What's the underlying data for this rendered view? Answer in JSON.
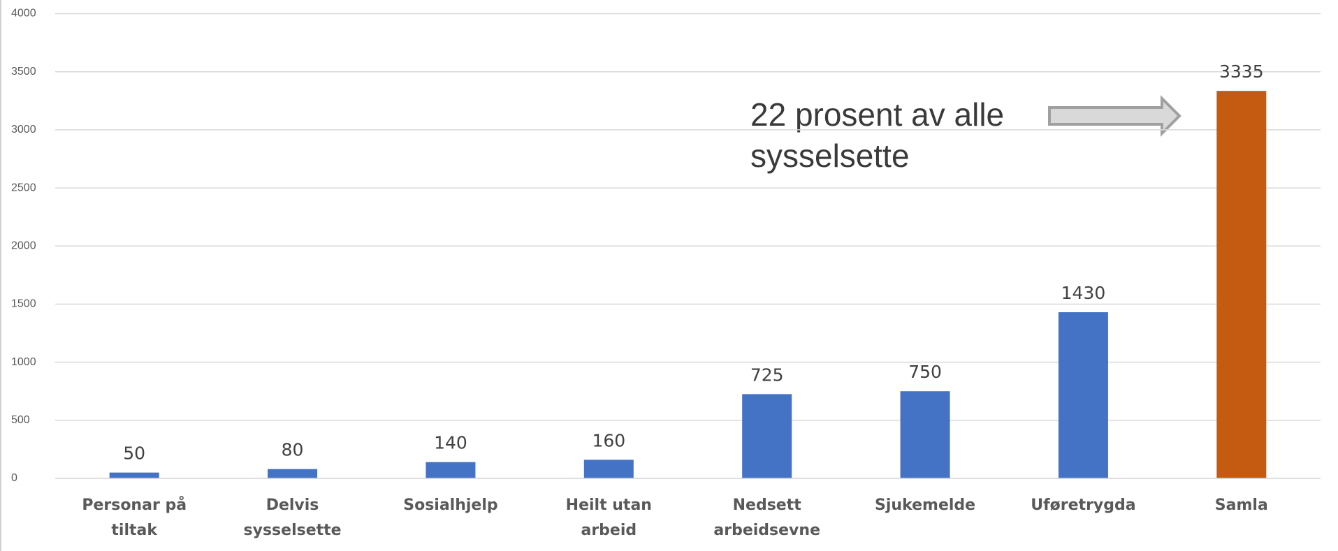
{
  "chart_data": {
    "type": "bar",
    "categories": [
      "Personar på tiltak",
      "Delvis sysselsette",
      "Sosialhjelp",
      "Heilt utan arbeid",
      "Nedsett arbeidsevne",
      "Sjukemelde",
      "Uføretrygda",
      "Samla"
    ],
    "values": [
      50,
      80,
      140,
      160,
      725,
      750,
      1430,
      3335
    ],
    "colors": [
      "#4472c4",
      "#4472c4",
      "#4472c4",
      "#4472c4",
      "#4472c4",
      "#4472c4",
      "#4472c4",
      "#c55a11"
    ],
    "ylim": [
      0,
      4000
    ],
    "yticks": [
      0,
      500,
      1000,
      1500,
      2000,
      2500,
      3000,
      3500,
      4000
    ],
    "grid": true,
    "annotation": [
      "22 prosent av alle",
      "sysselsette"
    ]
  }
}
